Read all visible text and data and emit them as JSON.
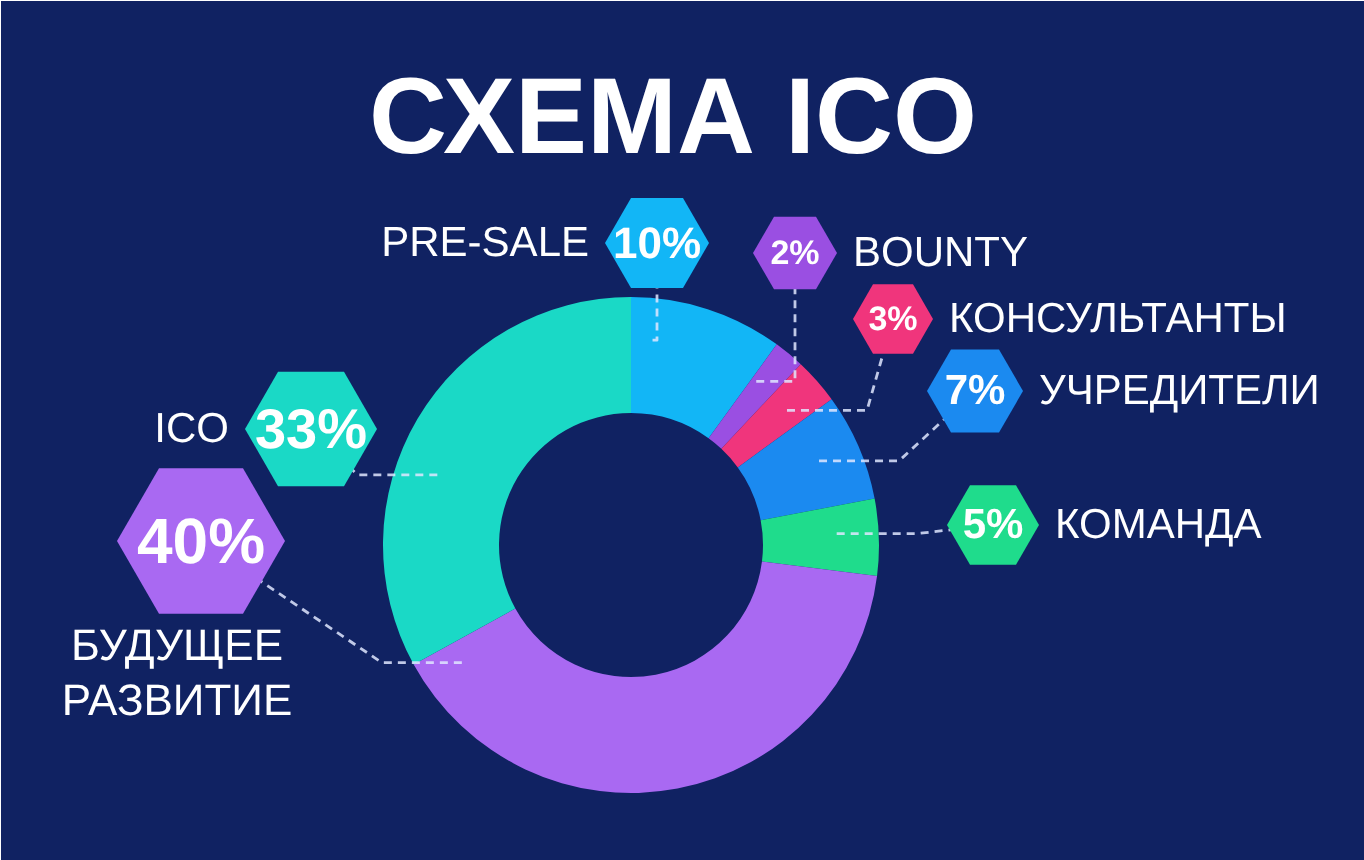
{
  "chart_data": {
    "type": "donut",
    "title": "СХЕМА ICO",
    "categories": [
      "PRE-SALE",
      "BOUNTY",
      "КОНСУЛЬТАНТЫ",
      "УЧРЕДИТЕЛИ",
      "КОМАНДА",
      "БУДУЩЕЕ РАЗВИТИЕ",
      "ICO"
    ],
    "values": [
      10,
      2,
      3,
      7,
      5,
      40,
      33
    ],
    "colors": [
      "#12b6f6",
      "#9a4fe2",
      "#f0357c",
      "#1b8af0",
      "#1fdc8c",
      "#a969f2",
      "#1ad9c6"
    ],
    "value_labels": [
      "10%",
      "2%",
      "3%",
      "7%",
      "5%",
      "40%",
      "33%"
    ],
    "legend": "right"
  }
}
